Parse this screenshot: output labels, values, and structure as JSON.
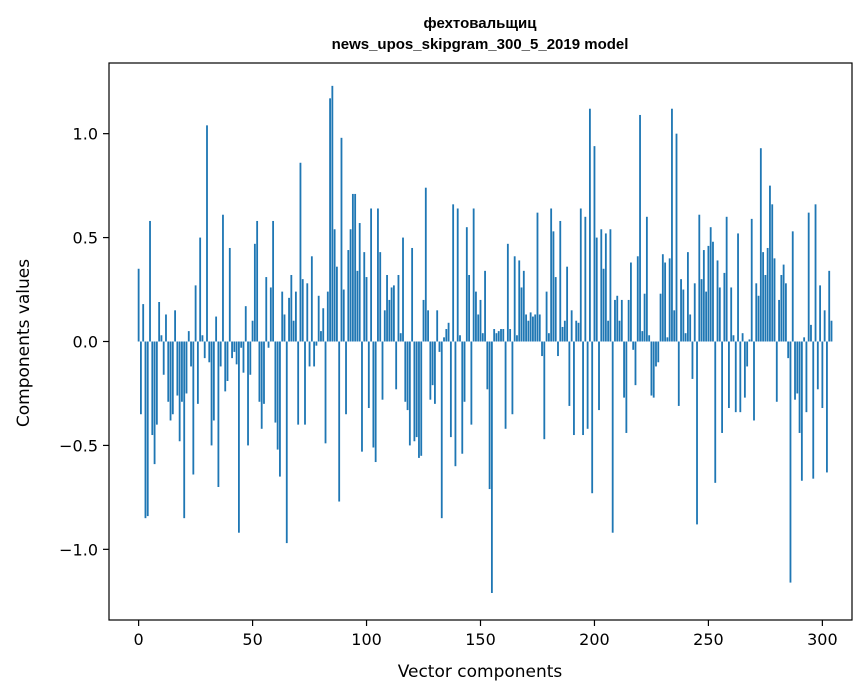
{
  "chart_data": {
    "type": "bar",
    "title": "фехтовальщиц",
    "subtitle": "news_upos_skipgram_300_5_2019 model",
    "xlabel": "Vector components",
    "ylabel": "Components values",
    "xlim": [
      -13,
      313
    ],
    "ylim": [
      -1.34,
      1.34
    ],
    "x_ticks": [
      0,
      50,
      100,
      150,
      200,
      250,
      300
    ],
    "x_tick_labels": [
      "0",
      "50",
      "100",
      "150",
      "200",
      "250",
      "300"
    ],
    "y_ticks": [
      -1.0,
      -0.5,
      0.0,
      0.5,
      1.0
    ],
    "y_tick_labels": [
      "−1.0",
      "−0.5",
      "0.0",
      "0.5",
      "1.0"
    ],
    "bar_color": "#1f77b4",
    "grid": false,
    "values": [
      0.35,
      -0.35,
      0.18,
      -0.85,
      -0.84,
      0.58,
      -0.45,
      -0.59,
      -0.4,
      0.19,
      0.03,
      -0.16,
      0.13,
      -0.29,
      -0.38,
      -0.35,
      0.15,
      -0.26,
      -0.48,
      -0.29,
      -0.85,
      -0.25,
      0.05,
      -0.12,
      -0.64,
      0.27,
      -0.3,
      0.5,
      0.03,
      -0.08,
      1.04,
      -0.1,
      -0.5,
      -0.38,
      0.12,
      -0.7,
      -0.12,
      0.61,
      -0.24,
      -0.19,
      0.45,
      -0.08,
      -0.05,
      -0.11,
      -0.92,
      -0.03,
      -0.15,
      0.17,
      -0.5,
      -0.16,
      0.1,
      0.47,
      0.58,
      -0.29,
      -0.42,
      -0.3,
      0.31,
      -0.03,
      0.26,
      0.58,
      -0.39,
      -0.52,
      -0.65,
      0.24,
      0.13,
      -0.97,
      0.21,
      0.32,
      0.1,
      0.24,
      -0.4,
      0.86,
      0.3,
      -0.4,
      0.28,
      -0.12,
      0.41,
      -0.12,
      -0.02,
      0.22,
      0.05,
      0.16,
      -0.49,
      0.24,
      1.17,
      1.23,
      0.54,
      0.36,
      -0.77,
      0.98,
      0.25,
      -0.35,
      0.44,
      0.54,
      0.71,
      0.71,
      0.34,
      0.57,
      -0.53,
      0.43,
      0.31,
      -0.32,
      0.64,
      -0.51,
      -0.58,
      0.64,
      0.43,
      -0.28,
      0.15,
      0.32,
      0.2,
      0.26,
      0.27,
      -0.23,
      0.32,
      0.04,
      0.5,
      -0.29,
      -0.33,
      -0.5,
      0.45,
      -0.48,
      -0.46,
      -0.56,
      -0.55,
      0.2,
      0.74,
      0.15,
      -0.28,
      -0.21,
      -0.3,
      0.15,
      -0.05,
      -0.85,
      0.02,
      0.06,
      0.09,
      -0.46,
      0.66,
      -0.6,
      0.64,
      0.03,
      -0.54,
      -0.29,
      0.55,
      0.32,
      -0.4,
      0.64,
      0.24,
      0.13,
      0.2,
      0.04,
      0.34,
      -0.23,
      -0.71,
      -1.21,
      0.06,
      0.04,
      0.05,
      0.06,
      0.06,
      -0.42,
      0.47,
      0.06,
      -0.35,
      0.41,
      0.03,
      0.39,
      0.26,
      0.34,
      0.13,
      0.1,
      0.14,
      0.12,
      0.13,
      0.62,
      0.13,
      -0.07,
      -0.47,
      0.24,
      0.04,
      0.64,
      0.53,
      0.31,
      -0.07,
      0.58,
      0.07,
      0.1,
      0.36,
      -0.31,
      0.15,
      -0.45,
      0.1,
      0.09,
      0.64,
      -0.45,
      0.6,
      -0.42,
      1.12,
      -0.73,
      0.94,
      0.5,
      -0.33,
      0.54,
      0.35,
      0.52,
      0.1,
      0.54,
      -0.92,
      0.2,
      0.22,
      0.1,
      0.2,
      -0.27,
      -0.44,
      0.2,
      0.38,
      -0.04,
      -0.21,
      0.41,
      1.09,
      0.05,
      0.23,
      0.6,
      0.03,
      -0.26,
      -0.27,
      -0.12,
      -0.1,
      0.23,
      0.42,
      0.38,
      0.02,
      0.4,
      1.12,
      0.15,
      1.0,
      -0.31,
      0.3,
      0.25,
      0.04,
      0.43,
      0.13,
      -0.18,
      0.28,
      -0.88,
      0.61,
      0.3,
      0.44,
      0.24,
      0.46,
      0.55,
      0.48,
      -0.68,
      0.39,
      0.26,
      -0.44,
      0.33,
      0.6,
      -0.32,
      0.26,
      0.03,
      -0.34,
      0.52,
      -0.34,
      0.04,
      -0.27,
      -0.12,
      0.01,
      0.59,
      -0.38,
      0.28,
      0.22,
      0.93,
      0.43,
      0.32,
      0.45,
      0.75,
      0.66,
      0.4,
      -0.29,
      0.2,
      0.32,
      0.37,
      0.28,
      -0.08,
      -1.16,
      0.53,
      -0.28,
      -0.25,
      -0.44,
      -0.67,
      0.02,
      -0.34,
      0.62,
      0.08,
      -0.66,
      0.66,
      -0.23,
      0.27,
      -0.32,
      0.15,
      -0.63,
      0.34,
      0.1
    ]
  }
}
